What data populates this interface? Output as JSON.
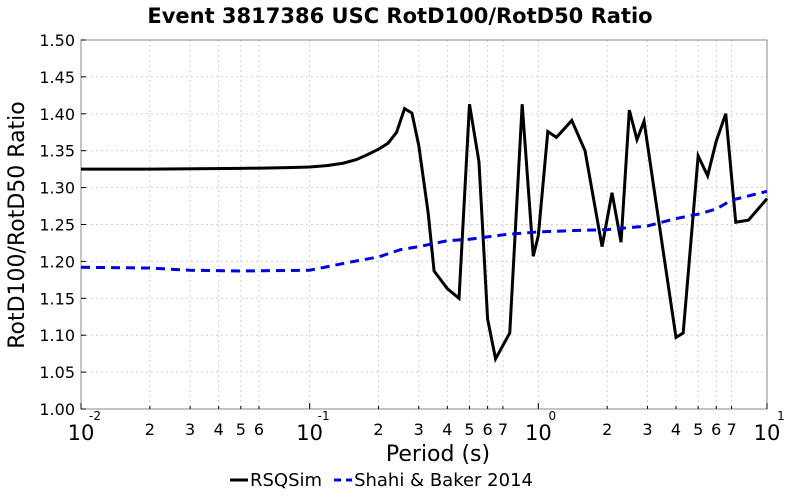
{
  "chart_data": {
    "type": "line",
    "title": "Event 3817386 USC RotD100/RotD50 Ratio",
    "xlabel": "Period (s)",
    "ylabel": "RotD100/RotD50 Ratio",
    "xscale": "log",
    "xlim": [
      0.01,
      10
    ],
    "ylim": [
      1.0,
      1.5
    ],
    "yticks": [
      1.0,
      1.05,
      1.1,
      1.15,
      1.2,
      1.25,
      1.3,
      1.35,
      1.4,
      1.45,
      1.5
    ],
    "ytick_labels": [
      "1.00",
      "1.05",
      "1.10",
      "1.15",
      "1.20",
      "1.25",
      "1.30",
      "1.35",
      "1.40",
      "1.45",
      "1.50"
    ],
    "xticks_major": [
      {
        "base": "10",
        "exp": "-2",
        "value": 0.01
      },
      {
        "base": "10",
        "exp": "-1",
        "value": 0.1
      },
      {
        "base": "10",
        "exp": "0",
        "value": 1
      },
      {
        "base": "10",
        "exp": "1",
        "value": 10
      }
    ],
    "xticks_minor": [
      {
        "label": "2",
        "value": 0.02
      },
      {
        "label": "3",
        "value": 0.03
      },
      {
        "label": "4",
        "value": 0.04
      },
      {
        "label": "5",
        "value": 0.05
      },
      {
        "label": "6",
        "value": 0.06
      },
      {
        "label": "2",
        "value": 0.2
      },
      {
        "label": "3",
        "value": 0.3
      },
      {
        "label": "4",
        "value": 0.4
      },
      {
        "label": "5",
        "value": 0.5
      },
      {
        "label": "6",
        "value": 0.6
      },
      {
        "label": "7",
        "value": 0.7
      },
      {
        "label": "2",
        "value": 2
      },
      {
        "label": "3",
        "value": 3
      },
      {
        "label": "4",
        "value": 4
      },
      {
        "label": "5",
        "value": 5
      },
      {
        "label": "6",
        "value": 6
      },
      {
        "label": "7",
        "value": 7
      }
    ],
    "grid": true,
    "legend_position": "bottom-center",
    "series": [
      {
        "name": "RSQSim",
        "color": "#000000",
        "style": "solid",
        "points": [
          [
            0.01,
            1.325
          ],
          [
            0.02,
            1.325
          ],
          [
            0.05,
            1.326
          ],
          [
            0.08,
            1.327
          ],
          [
            0.1,
            1.328
          ],
          [
            0.12,
            1.33
          ],
          [
            0.14,
            1.333
          ],
          [
            0.16,
            1.338
          ],
          [
            0.18,
            1.345
          ],
          [
            0.2,
            1.352
          ],
          [
            0.22,
            1.36
          ],
          [
            0.24,
            1.375
          ],
          [
            0.26,
            1.407
          ],
          [
            0.28,
            1.401
          ],
          [
            0.3,
            1.357
          ],
          [
            0.33,
            1.265
          ],
          [
            0.35,
            1.187
          ],
          [
            0.4,
            1.163
          ],
          [
            0.45,
            1.15
          ],
          [
            0.5,
            1.413
          ],
          [
            0.55,
            1.335
          ],
          [
            0.6,
            1.122
          ],
          [
            0.65,
            1.068
          ],
          [
            0.75,
            1.103
          ],
          [
            0.85,
            1.413
          ],
          [
            0.95,
            1.207
          ],
          [
            1.0,
            1.235
          ],
          [
            1.1,
            1.376
          ],
          [
            1.2,
            1.368
          ],
          [
            1.4,
            1.391
          ],
          [
            1.6,
            1.35
          ],
          [
            1.9,
            1.22
          ],
          [
            2.1,
            1.293
          ],
          [
            2.3,
            1.226
          ],
          [
            2.5,
            1.405
          ],
          [
            2.7,
            1.365
          ],
          [
            2.9,
            1.39
          ],
          [
            3.5,
            1.218
          ],
          [
            4.0,
            1.097
          ],
          [
            4.3,
            1.103
          ],
          [
            5.0,
            1.343
          ],
          [
            5.5,
            1.316
          ],
          [
            6.0,
            1.363
          ],
          [
            6.6,
            1.4
          ],
          [
            7.3,
            1.253
          ],
          [
            8.3,
            1.256
          ],
          [
            10.0,
            1.285
          ]
        ]
      },
      {
        "name": "Shahi & Baker 2014",
        "color": "#0000dd",
        "style": "dashed",
        "points": [
          [
            0.01,
            1.192
          ],
          [
            0.02,
            1.191
          ],
          [
            0.03,
            1.188
          ],
          [
            0.05,
            1.187
          ],
          [
            0.1,
            1.188
          ],
          [
            0.15,
            1.199
          ],
          [
            0.2,
            1.206
          ],
          [
            0.25,
            1.216
          ],
          [
            0.3,
            1.22
          ],
          [
            0.4,
            1.228
          ],
          [
            0.5,
            1.23
          ],
          [
            0.7,
            1.236
          ],
          [
            1.0,
            1.24
          ],
          [
            1.5,
            1.242
          ],
          [
            2.0,
            1.243
          ],
          [
            3.0,
            1.248
          ],
          [
            4.0,
            1.258
          ],
          [
            5.0,
            1.264
          ],
          [
            6.0,
            1.271
          ],
          [
            7.0,
            1.283
          ],
          [
            10.0,
            1.295
          ]
        ]
      }
    ]
  }
}
